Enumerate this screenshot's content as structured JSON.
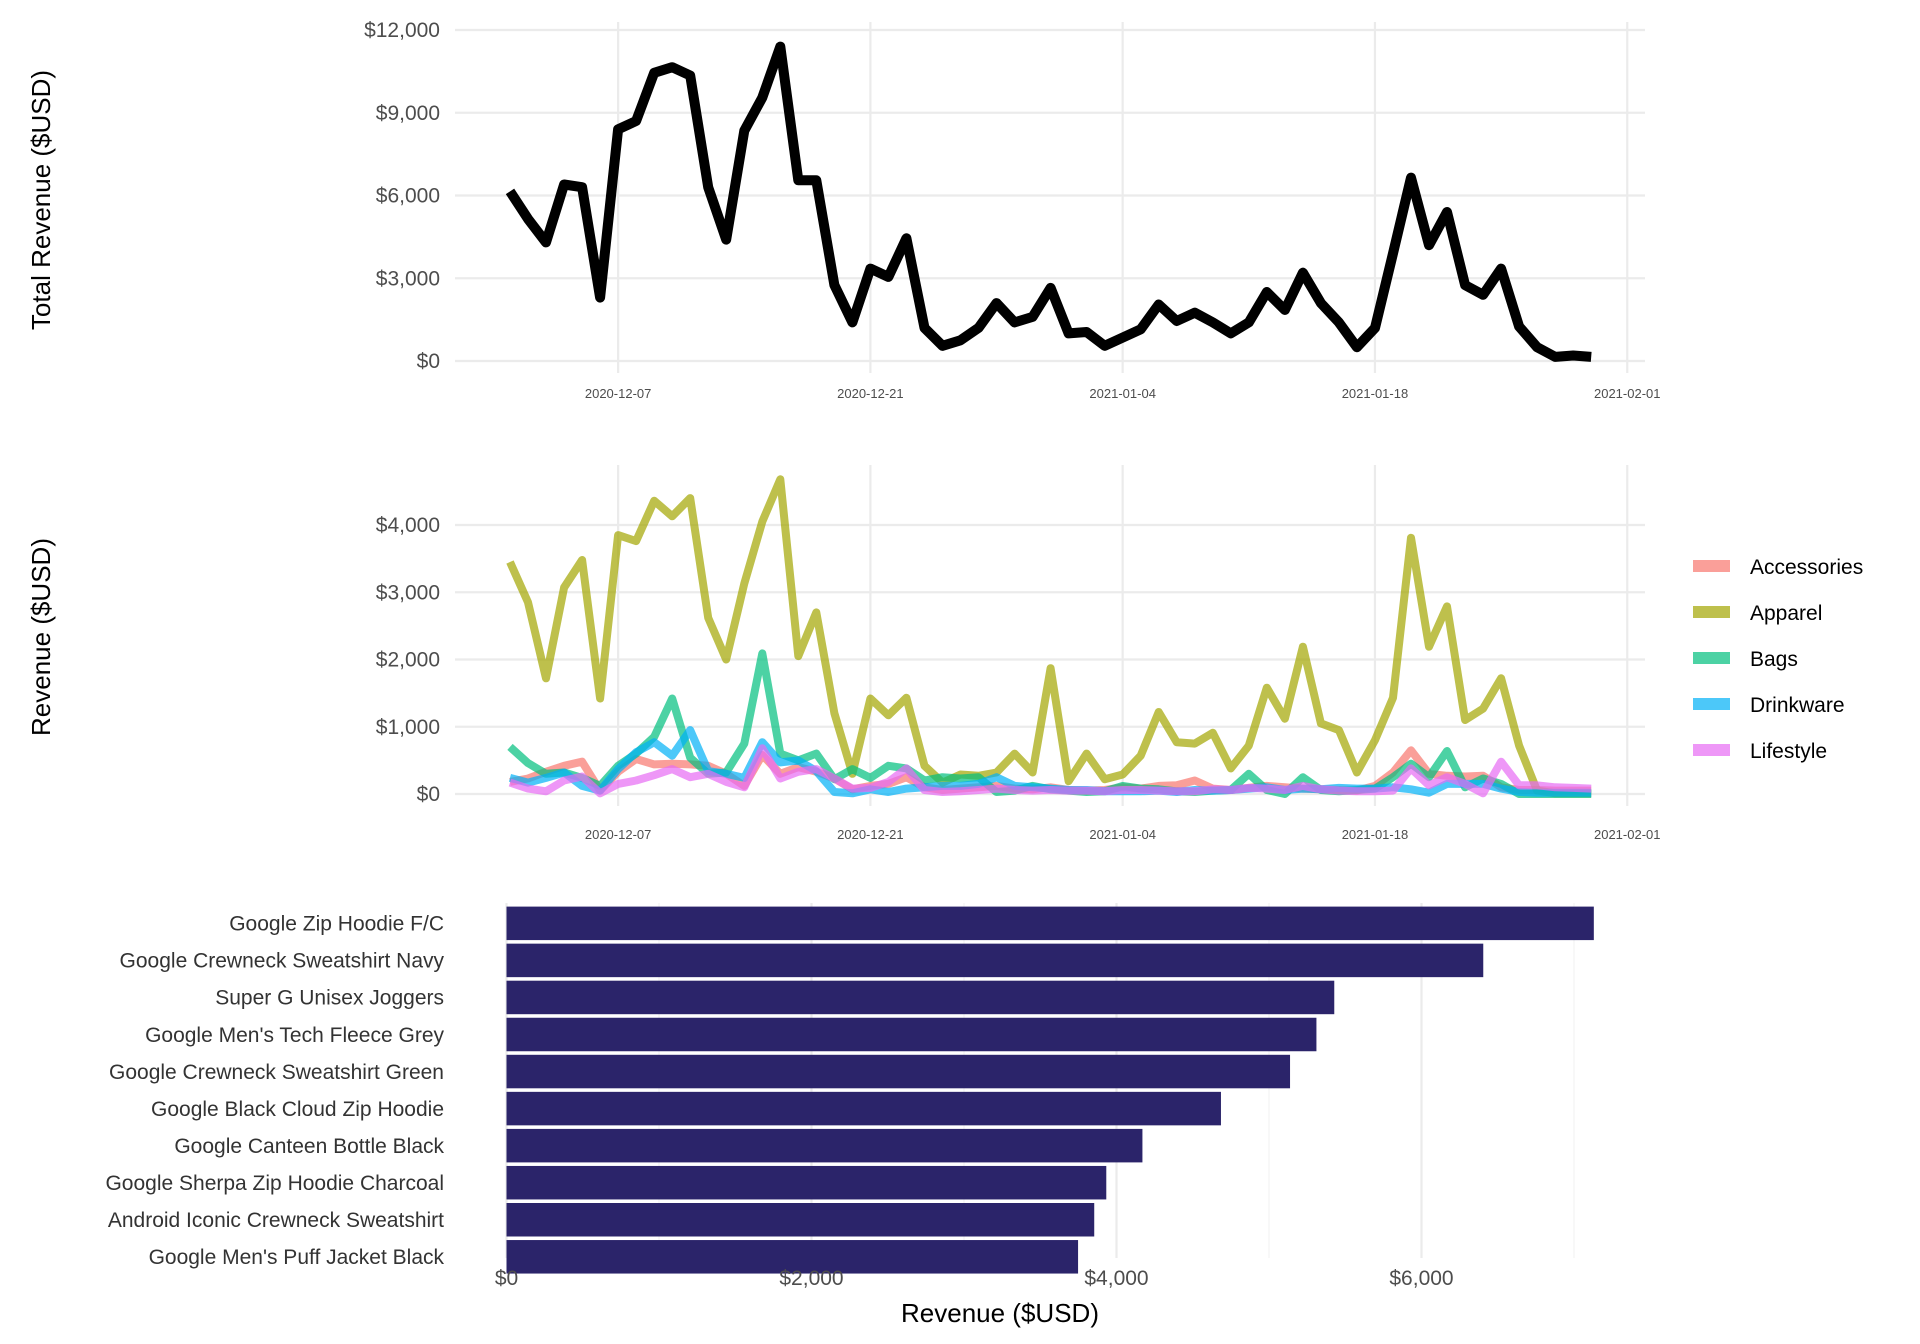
{
  "chart_data": [
    {
      "type": "line",
      "panel": "total",
      "title": "",
      "xlabel": "",
      "ylabel": "Total Revenue ($USD)",
      "ylim": [
        0,
        12000
      ],
      "yticks": [
        0,
        3000,
        6000,
        9000,
        12000
      ],
      "ytick_labels": [
        "$0",
        "$3,000",
        "$6,000",
        "$9,000",
        "$12,000"
      ],
      "x_start": "2020-12-01",
      "x_end": "2021-01-30",
      "xlim": [
        "2020-11-28",
        "2021-02-02"
      ],
      "xticks": [
        "2020-12-07",
        "2020-12-21",
        "2021-01-04",
        "2021-01-18",
        "2021-02-01"
      ],
      "grid": true,
      "series": [
        {
          "name": "Total Revenue",
          "color": "#000000",
          "values": [
            6150,
            5150,
            4300,
            6400,
            6300,
            2300,
            8400,
            8700,
            10450,
            10650,
            10350,
            6300,
            4400,
            8350,
            9550,
            11400,
            6550,
            6550,
            2750,
            1400,
            3350,
            3050,
            4450,
            1200,
            550,
            750,
            1200,
            2100,
            1400,
            1600,
            2650,
            1000,
            1050,
            550,
            850,
            1150,
            2050,
            1450,
            1750,
            1400,
            1000,
            1400,
            2500,
            1850,
            3200,
            2100,
            1400,
            500,
            1200,
            3900,
            6650,
            4200,
            5400,
            2750,
            2400,
            3350,
            1250,
            500,
            150,
            200,
            150
          ]
        }
      ]
    },
    {
      "type": "line",
      "panel": "category",
      "title": "",
      "xlabel": "",
      "ylabel": "Revenue ($USD)",
      "ylim": [
        0,
        4800
      ],
      "yticks": [
        0,
        1000,
        2000,
        3000,
        4000
      ],
      "ytick_labels": [
        "$0",
        "$1,000",
        "$2,000",
        "$3,000",
        "$4,000"
      ],
      "x_start": "2020-12-01",
      "x_end": "2021-01-30",
      "xticks": [
        "2020-12-07",
        "2020-12-21",
        "2021-01-04",
        "2021-01-18",
        "2021-02-01"
      ],
      "grid": true,
      "legend_position": "right",
      "series": [
        {
          "name": "Accessories",
          "color": "#F8766D",
          "values": [
            180,
            230,
            330,
            420,
            480,
            50,
            330,
            520,
            440,
            450,
            440,
            420,
            300,
            120,
            580,
            300,
            400,
            330,
            230,
            70,
            120,
            150,
            250,
            100,
            60,
            80,
            100,
            120,
            80,
            70,
            100,
            60,
            50,
            60,
            100,
            80,
            120,
            130,
            200,
            80,
            60,
            90,
            120,
            100,
            80,
            70,
            60,
            50,
            120,
            320,
            650,
            300,
            270,
            260,
            270,
            100,
            60,
            60,
            50,
            50,
            50
          ]
        },
        {
          "name": "Apparel",
          "color": "#A3A500",
          "values": [
            3450,
            2850,
            1720,
            3070,
            3480,
            1420,
            3850,
            3760,
            4360,
            4130,
            4400,
            2620,
            2000,
            3130,
            4050,
            4680,
            2050,
            2700,
            1200,
            300,
            1420,
            1170,
            1430,
            420,
            170,
            290,
            270,
            320,
            600,
            320,
            1870,
            190,
            600,
            220,
            290,
            570,
            1220,
            770,
            750,
            910,
            380,
            720,
            1580,
            1120,
            2190,
            1050,
            950,
            320,
            800,
            1430,
            3810,
            2190,
            2790,
            1100,
            1270,
            1720,
            720,
            50,
            10,
            10,
            10
          ]
        },
        {
          "name": "Bags",
          "color": "#00BF7D",
          "values": [
            700,
            460,
            300,
            320,
            240,
            120,
            420,
            600,
            850,
            1420,
            540,
            300,
            320,
            750,
            2090,
            600,
            500,
            600,
            220,
            370,
            240,
            420,
            380,
            200,
            250,
            230,
            250,
            30,
            50,
            120,
            70,
            50,
            30,
            40,
            120,
            80,
            70,
            40,
            30,
            50,
            60,
            300,
            60,
            0,
            250,
            60,
            40,
            60,
            80,
            250,
            450,
            250,
            640,
            100,
            230,
            150,
            0,
            0,
            0,
            0,
            0
          ]
        },
        {
          "name": "Drinkware",
          "color": "#00B0F6",
          "values": [
            240,
            170,
            240,
            320,
            120,
            50,
            370,
            620,
            770,
            570,
            950,
            340,
            300,
            240,
            770,
            470,
            500,
            340,
            30,
            10,
            70,
            30,
            80,
            100,
            120,
            120,
            150,
            250,
            120,
            100,
            80,
            60,
            60,
            40,
            40,
            40,
            50,
            30,
            60,
            50,
            60,
            80,
            100,
            60,
            80,
            70,
            90,
            80,
            80,
            100,
            70,
            20,
            150,
            150,
            150,
            80,
            30,
            20,
            20,
            20,
            20
          ]
        },
        {
          "name": "Lifestyle",
          "color": "#E76BF3",
          "values": [
            170,
            80,
            40,
            200,
            260,
            10,
            150,
            200,
            280,
            370,
            250,
            300,
            180,
            100,
            680,
            230,
            330,
            370,
            230,
            80,
            90,
            180,
            380,
            60,
            30,
            40,
            60,
            80,
            60,
            50,
            60,
            50,
            50,
            40,
            60,
            60,
            50,
            40,
            40,
            70,
            60,
            90,
            80,
            60,
            120,
            70,
            50,
            40,
            40,
            50,
            380,
            130,
            250,
            150,
            10,
            480,
            130,
            130,
            100,
            90,
            80
          ]
        }
      ]
    },
    {
      "type": "bar",
      "orientation": "horizontal",
      "panel": "top-products",
      "title": "",
      "xlabel": "Revenue ($USD)",
      "ylabel": "",
      "xlim": [
        0,
        7500
      ],
      "xticks": [
        0,
        2000,
        4000,
        6000
      ],
      "xtick_labels": [
        "$0",
        "$2,000",
        "$4,000",
        "$6,000"
      ],
      "grid": true,
      "color": "#2B246A",
      "categories": [
        "Google Zip Hoodie F/C",
        "Google Crewneck Sweatshirt Navy",
        "Super G Unisex Joggers",
        "Google Men's Tech Fleece Grey",
        "Google Crewneck Sweatshirt Green",
        "Google Black Cloud Zip Hoodie",
        "Google Canteen Bottle Black",
        "Google Sherpa Zip Hoodie Charcoal",
        "Android Iconic Crewneck Sweatshirt",
        "Google Men's Puff Jacket Black"
      ],
      "values": [
        7130,
        6405,
        5428,
        5311,
        5138,
        4685,
        4170,
        3933,
        3854,
        3748
      ]
    }
  ]
}
